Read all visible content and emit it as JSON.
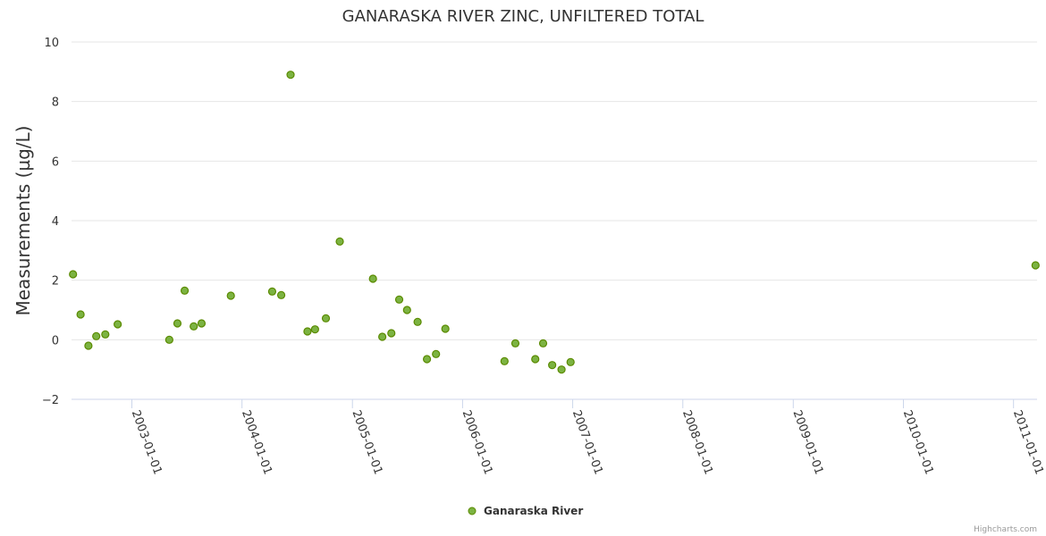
{
  "chart_data": {
    "type": "scatter",
    "title": "GANARASKA RIVER ZINC, UNFILTERED TOTAL",
    "xlabel": "",
    "ylabel": "Measurements (µg/L)",
    "ylim": [
      -2,
      10
    ],
    "yticks": [
      -2,
      0,
      2,
      4,
      6,
      8,
      10
    ],
    "ytick_labels": [
      "−2",
      "0",
      "2",
      "4",
      "6",
      "8",
      "10"
    ],
    "xticks": [
      "2003-01-01",
      "2004-01-01",
      "2005-01-01",
      "2006-01-01",
      "2007-01-01",
      "2008-01-01",
      "2009-01-01",
      "2010-01-01",
      "2011-01-01"
    ],
    "xlim": [
      "2002-06-15",
      "2011-03-20"
    ],
    "grid": true,
    "legend": "bottom-center",
    "series": [
      {
        "name": "Ganaraska River",
        "color": "#7cb342",
        "edge_color": "#5a8a00",
        "points": [
          {
            "x": "2002-06-20",
            "y": 2.2
          },
          {
            "x": "2002-07-15",
            "y": 0.85
          },
          {
            "x": "2002-08-10",
            "y": -0.2
          },
          {
            "x": "2002-09-05",
            "y": 0.12
          },
          {
            "x": "2002-10-05",
            "y": 0.18
          },
          {
            "x": "2002-11-15",
            "y": 0.52
          },
          {
            "x": "2003-05-05",
            "y": 0.0
          },
          {
            "x": "2003-06-01",
            "y": 0.55
          },
          {
            "x": "2003-06-25",
            "y": 1.65
          },
          {
            "x": "2003-07-25",
            "y": 0.45
          },
          {
            "x": "2003-08-20",
            "y": 0.55
          },
          {
            "x": "2003-11-25",
            "y": 1.48
          },
          {
            "x": "2004-04-10",
            "y": 1.62
          },
          {
            "x": "2004-05-10",
            "y": 1.5
          },
          {
            "x": "2004-06-10",
            "y": 8.9
          },
          {
            "x": "2004-08-05",
            "y": 0.28
          },
          {
            "x": "2004-08-30",
            "y": 0.35
          },
          {
            "x": "2004-10-05",
            "y": 0.72
          },
          {
            "x": "2004-11-20",
            "y": 3.3
          },
          {
            "x": "2005-03-10",
            "y": 2.05
          },
          {
            "x": "2005-04-10",
            "y": 0.1
          },
          {
            "x": "2005-05-10",
            "y": 0.22
          },
          {
            "x": "2005-06-05",
            "y": 1.35
          },
          {
            "x": "2005-07-01",
            "y": 1.0
          },
          {
            "x": "2005-08-05",
            "y": 0.6
          },
          {
            "x": "2005-09-05",
            "y": -0.65
          },
          {
            "x": "2005-10-05",
            "y": -0.48
          },
          {
            "x": "2005-11-05",
            "y": 0.37
          },
          {
            "x": "2006-05-20",
            "y": -0.72
          },
          {
            "x": "2006-06-25",
            "y": -0.12
          },
          {
            "x": "2006-08-30",
            "y": -0.65
          },
          {
            "x": "2006-09-25",
            "y": -0.12
          },
          {
            "x": "2006-10-25",
            "y": -0.85
          },
          {
            "x": "2006-11-25",
            "y": -1.0
          },
          {
            "x": "2006-12-25",
            "y": -0.75
          },
          {
            "x": "2011-03-15",
            "y": 2.5
          }
        ]
      }
    ]
  },
  "credits": "Highcharts.com"
}
